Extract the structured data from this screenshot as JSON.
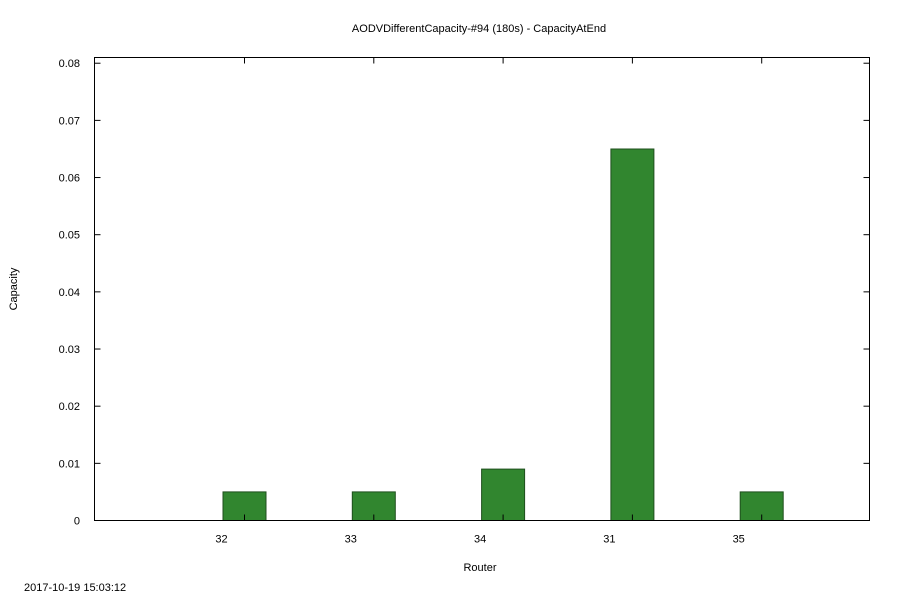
{
  "chart_data": {
    "type": "bar",
    "title": "AODVDifferentCapacity-#94 (180s) - CapacityAtEnd",
    "xlabel": "Router",
    "ylabel": "Capacity",
    "categories": [
      "32",
      "33",
      "34",
      "31",
      "35"
    ],
    "values": [
      0.005,
      0.005,
      0.009,
      0.065,
      0.005
    ],
    "ylim": [
      0,
      0.081
    ],
    "yticks": [
      "0",
      "0.01",
      "0.02",
      "0.03",
      "0.04",
      "0.05",
      "0.06",
      "0.07",
      "0.08"
    ],
    "ytick_values": [
      0,
      0.01,
      0.02,
      0.03,
      0.04,
      0.05,
      0.06,
      0.07,
      0.08
    ],
    "bar_color": "#31862f",
    "grid": false,
    "legend": "none"
  },
  "footer": {
    "timestamp": "2017-10-19 15:03:12"
  }
}
